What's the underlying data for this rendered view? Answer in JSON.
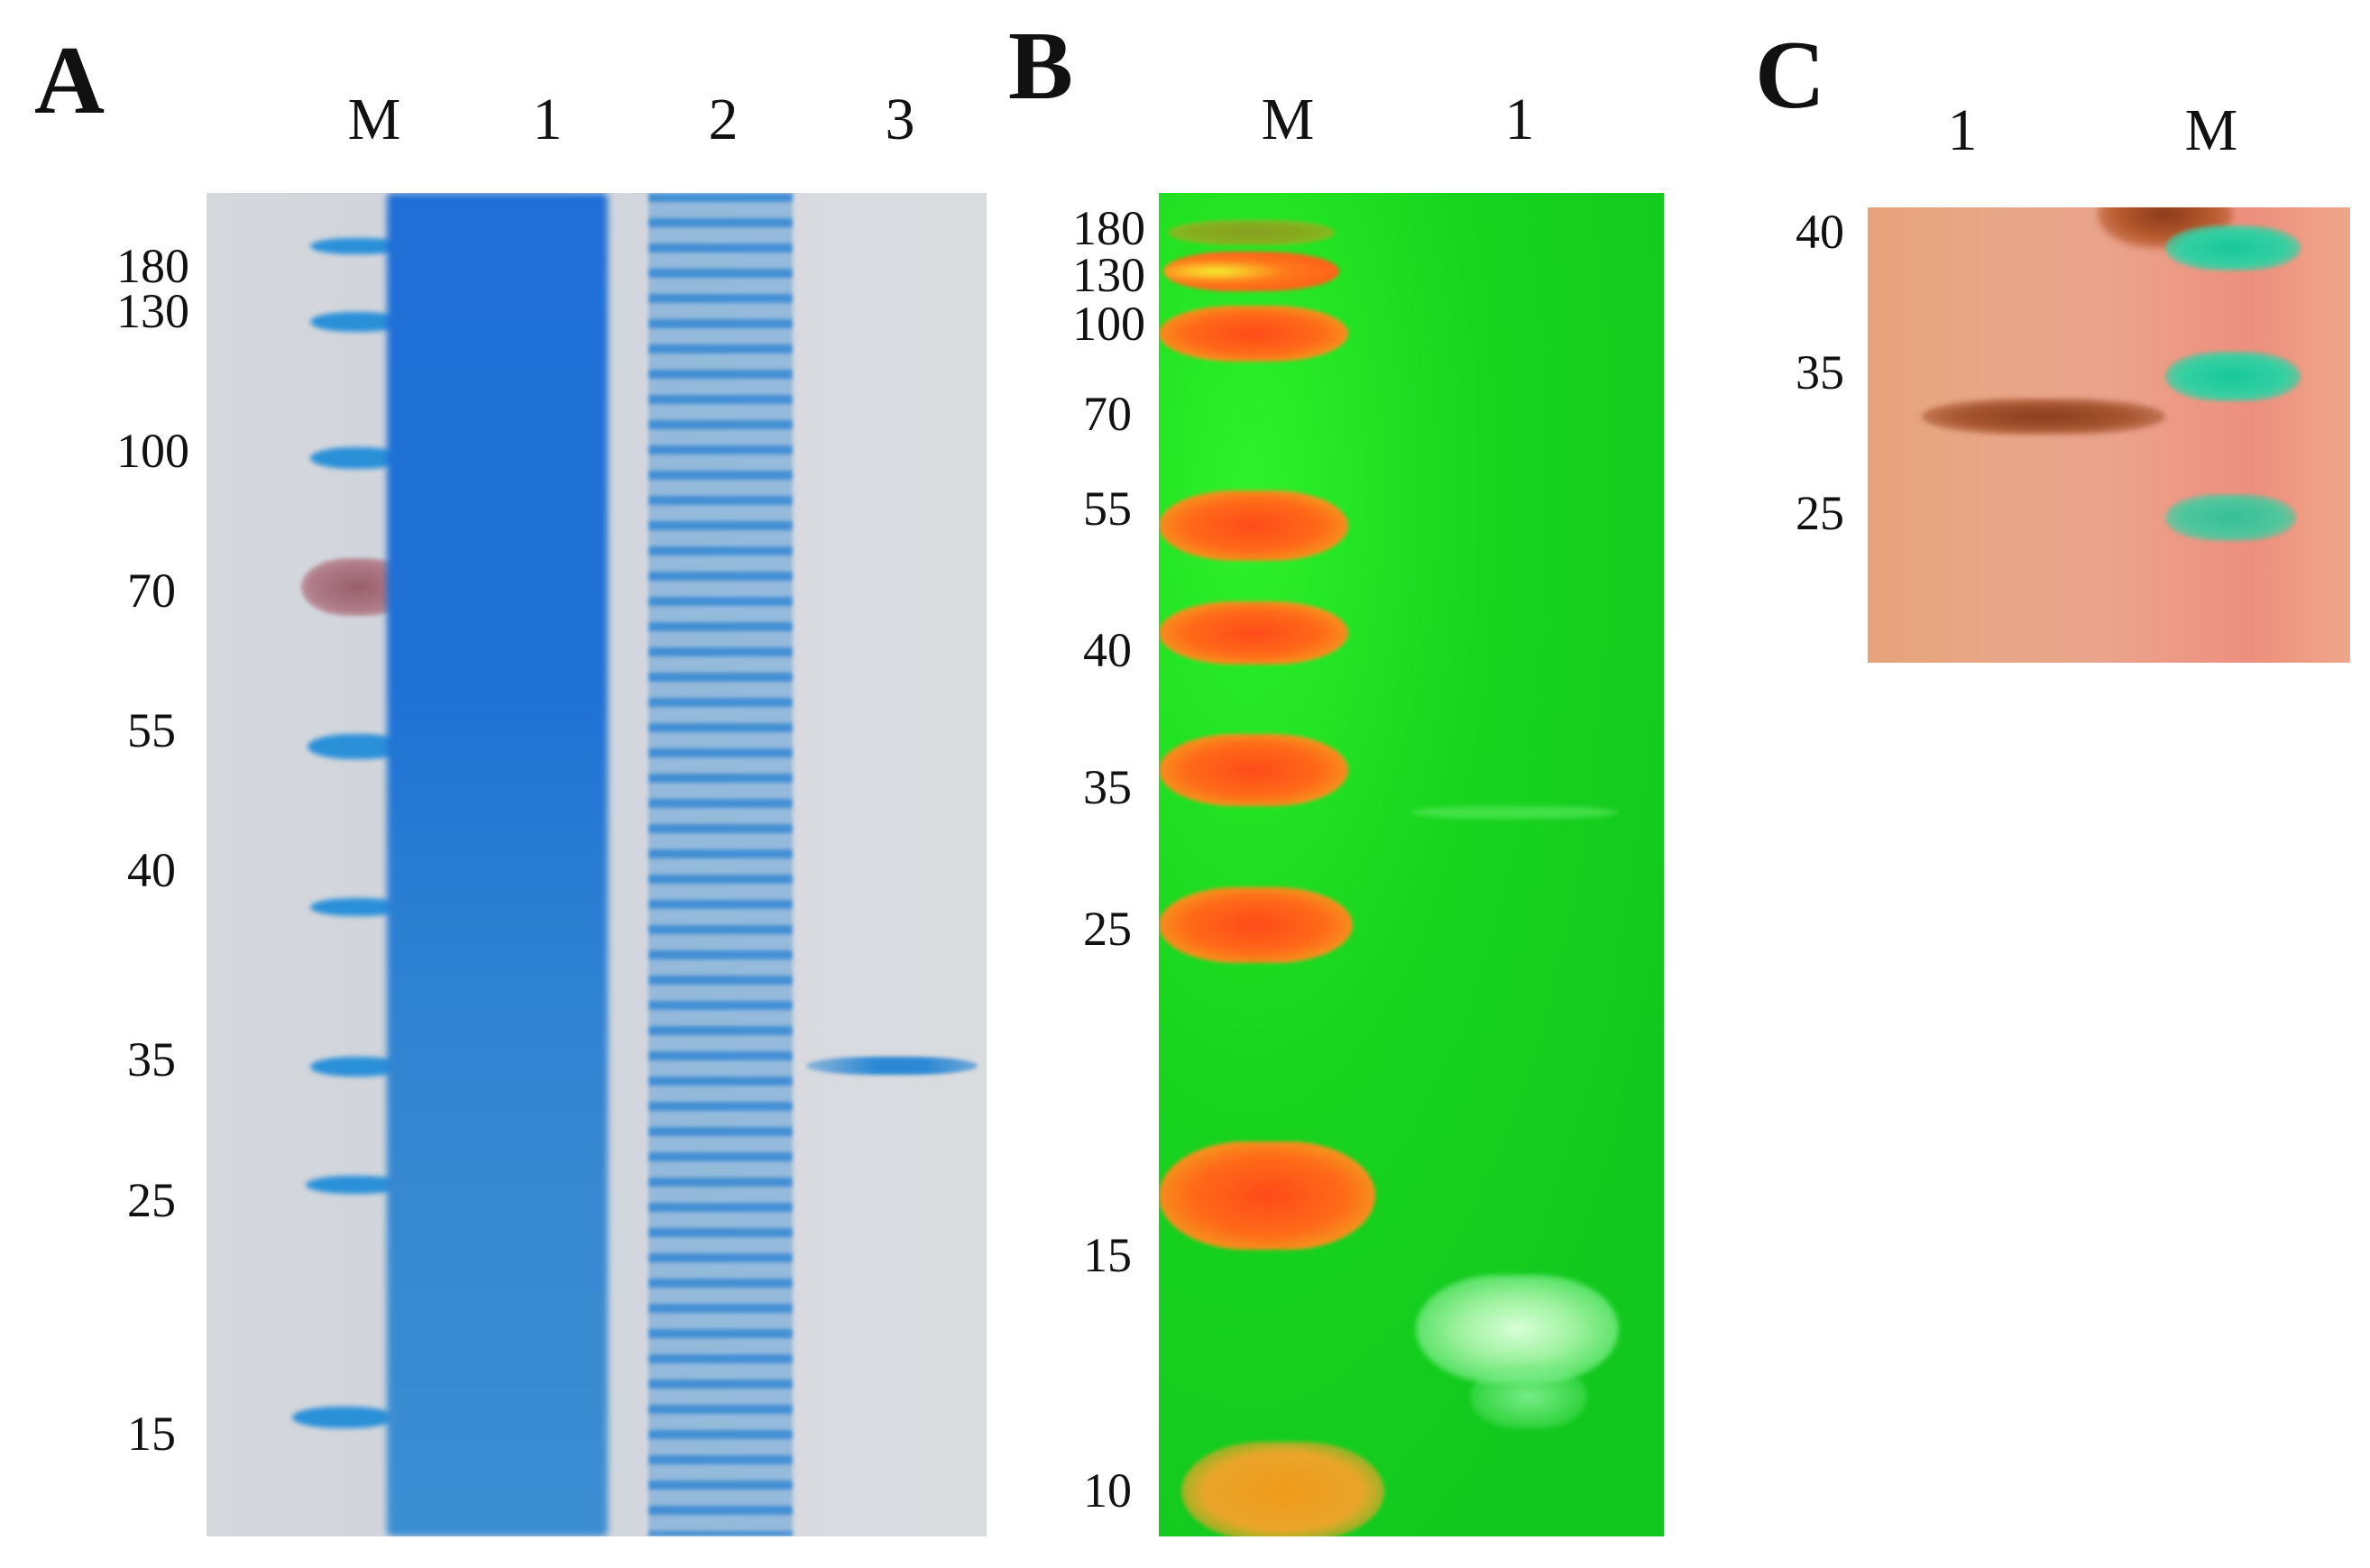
{
  "panelA": {
    "letter": "A",
    "lanes": [
      "M",
      "1",
      "2",
      "3"
    ],
    "markers": [
      "180",
      "130",
      "100",
      "70",
      "55",
      "40",
      "35",
      "25",
      "15"
    ]
  },
  "panelB": {
    "letter": "B",
    "lanes": [
      "M",
      "1"
    ],
    "markers": [
      "180",
      "130",
      "100",
      "70",
      "55",
      "40",
      "35",
      "25",
      "15",
      "10"
    ]
  },
  "panelC": {
    "letter": "C",
    "lanes": [
      "1",
      "M"
    ],
    "markers": [
      "40",
      "35",
      "25"
    ]
  },
  "colors": {
    "coomassie": "#2a90d8",
    "prestained_70": "#a86a78",
    "fluorescent_green": "#16cc1e",
    "marker_orange": "#ff5a1a",
    "membrane_c": "#e8a787",
    "marker_teal": "#17c79c"
  }
}
